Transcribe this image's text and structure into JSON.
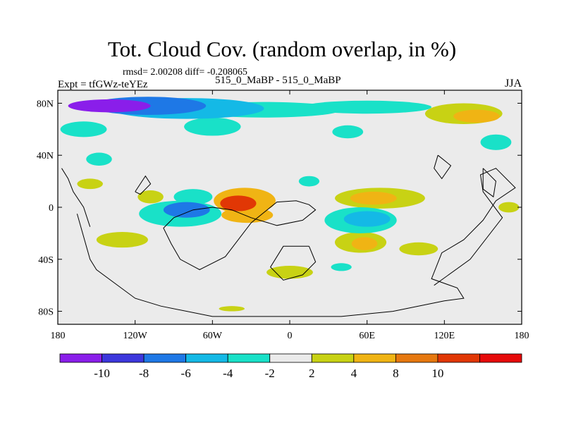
{
  "chart_data": {
    "type": "contour-map",
    "title": "Tot. Cloud Cov. (random overlap, in %)",
    "stats": "rmsd= 2.00208  diff= -0.208065",
    "left_label": "Expt = tfGWz-teYEz",
    "center_label": "515_0_MaBP - 515_0_MaBP",
    "right_label": "JJA",
    "xlim": [
      -180,
      180
    ],
    "ylim": [
      -90,
      90
    ],
    "x_ticks": [
      {
        "value": -180,
        "label": "180"
      },
      {
        "value": -120,
        "label": "120W"
      },
      {
        "value": -60,
        "label": "60W"
      },
      {
        "value": 0,
        "label": "0"
      },
      {
        "value": 60,
        "label": "60E"
      },
      {
        "value": 120,
        "label": "120E"
      },
      {
        "value": 180,
        "label": "180"
      }
    ],
    "y_ticks": [
      {
        "value": 80,
        "label": "80N"
      },
      {
        "value": 40,
        "label": "40N"
      },
      {
        "value": 0,
        "label": "0"
      },
      {
        "value": -40,
        "label": "40S"
      },
      {
        "value": -80,
        "label": "80S"
      }
    ],
    "levels": [
      -12,
      -10,
      -8,
      -6,
      -4,
      -2,
      2,
      4,
      8,
      10,
      12
    ],
    "level_labels": [
      "-10",
      "-8",
      "-6",
      "-4",
      "-2",
      "2",
      "4",
      "8",
      "10"
    ],
    "colors": [
      "#8a1eea",
      "#3c37dc",
      "#1e78e6",
      "#14b9e6",
      "#19e1c8",
      "#ebebeb",
      "#c8d214",
      "#f0b414",
      "#e6780f",
      "#e13705",
      "#e60a0a"
    ],
    "anomalies": [
      {
        "lon": -140,
        "lat": 78,
        "rlon": 32,
        "rlat": 5,
        "value": -10.5
      },
      {
        "lon": -110,
        "lat": 78,
        "rlon": 45,
        "rlat": 7,
        "value": -7
      },
      {
        "lon": -80,
        "lat": 76,
        "rlon": 60,
        "rlat": 8,
        "value": -5
      },
      {
        "lon": -20,
        "lat": 75,
        "rlon": 60,
        "rlat": 6,
        "value": -3.5
      },
      {
        "lon": 60,
        "lat": 77,
        "rlon": 50,
        "rlat": 5,
        "value": -3
      },
      {
        "lon": -160,
        "lat": 60,
        "rlon": 18,
        "rlat": 6,
        "value": -3.5
      },
      {
        "lon": -60,
        "lat": 62,
        "rlon": 22,
        "rlat": 7,
        "value": -3.5
      },
      {
        "lon": 45,
        "lat": 58,
        "rlon": 12,
        "rlat": 5,
        "value": -3
      },
      {
        "lon": 145,
        "lat": 70,
        "rlon": 18,
        "rlat": 5,
        "value": 6
      },
      {
        "lon": 135,
        "lat": 72,
        "rlon": 30,
        "rlat": 8,
        "value": 3
      },
      {
        "lon": 160,
        "lat": 50,
        "rlon": 12,
        "rlat": 6,
        "value": -3
      },
      {
        "lon": -148,
        "lat": 37,
        "rlon": 10,
        "rlat": 5,
        "value": -3
      },
      {
        "lon": -40,
        "lat": 3,
        "rlon": 14,
        "rlat": 6,
        "value": 10
      },
      {
        "lon": -35,
        "lat": 5,
        "rlon": 24,
        "rlat": 10,
        "value": 5
      },
      {
        "lon": -33,
        "lat": -6,
        "rlon": 20,
        "rlat": 6,
        "value": 5
      },
      {
        "lon": -75,
        "lat": 8,
        "rlon": 15,
        "rlat": 6,
        "value": -3.5
      },
      {
        "lon": -80,
        "lat": -2,
        "rlon": 18,
        "rlat": 6,
        "value": -7
      },
      {
        "lon": -85,
        "lat": -5,
        "rlon": 32,
        "rlat": 10,
        "value": -3.5
      },
      {
        "lon": -108,
        "lat": 8,
        "rlon": 10,
        "rlat": 5,
        "value": 3
      },
      {
        "lon": -130,
        "lat": -25,
        "rlon": 20,
        "rlat": 6,
        "value": 3
      },
      {
        "lon": 65,
        "lat": 7,
        "rlon": 18,
        "rlat": 5,
        "value": 6
      },
      {
        "lon": 70,
        "lat": 7,
        "rlon": 35,
        "rlat": 8,
        "value": 3
      },
      {
        "lon": 60,
        "lat": -9,
        "rlon": 18,
        "rlat": 6,
        "value": -6
      },
      {
        "lon": 55,
        "lat": -10,
        "rlon": 28,
        "rlat": 10,
        "value": -3.5
      },
      {
        "lon": 58,
        "lat": -28,
        "rlon": 10,
        "rlat": 5,
        "value": 6
      },
      {
        "lon": 55,
        "lat": -27,
        "rlon": 20,
        "rlat": 8,
        "value": 3
      },
      {
        "lon": 100,
        "lat": -32,
        "rlon": 15,
        "rlat": 5,
        "value": 3
      },
      {
        "lon": 0,
        "lat": -50,
        "rlon": 18,
        "rlat": 5,
        "value": 3
      },
      {
        "lon": -45,
        "lat": -78,
        "rlon": 10,
        "rlat": 2,
        "value": 3
      },
      {
        "lon": -155,
        "lat": 18,
        "rlon": 10,
        "rlat": 4,
        "value": 3
      },
      {
        "lon": 40,
        "lat": -46,
        "rlon": 8,
        "rlat": 3,
        "value": -3
      },
      {
        "lon": 170,
        "lat": 0,
        "rlon": 8,
        "rlat": 4,
        "value": 3
      },
      {
        "lon": 15,
        "lat": 20,
        "rlon": 8,
        "rlat": 4,
        "value": -3
      }
    ],
    "continent_outlines": [
      [
        [
          -60,
          0
        ],
        [
          -75,
          -2
        ],
        [
          -90,
          -8
        ],
        [
          -98,
          -16
        ],
        [
          -92,
          -28
        ],
        [
          -85,
          -40
        ],
        [
          -70,
          -48
        ],
        [
          -50,
          -38
        ],
        [
          -30,
          -12
        ],
        [
          -20,
          -4
        ],
        [
          -10,
          4
        ],
        [
          5,
          5
        ],
        [
          15,
          2
        ],
        [
          20,
          -2
        ],
        [
          10,
          -10
        ],
        [
          -10,
          -14
        ],
        [
          -30,
          -8
        ],
        [
          -45,
          -2
        ],
        [
          -60,
          0
        ]
      ],
      [
        [
          15,
          -30
        ],
        [
          -5,
          -30
        ],
        [
          -15,
          -46
        ],
        [
          -5,
          -56
        ],
        [
          10,
          -52
        ],
        [
          20,
          -42
        ],
        [
          15,
          -30
        ]
      ],
      [
        [
          -120,
          12
        ],
        [
          -112,
          24
        ],
        [
          -108,
          18
        ],
        [
          -116,
          10
        ],
        [
          -120,
          12
        ]
      ],
      [
        [
          -165,
          -5
        ],
        [
          -155,
          -40
        ],
        [
          -150,
          -48
        ],
        [
          -120,
          -70
        ],
        [
          -100,
          -76
        ],
        [
          -60,
          -84
        ],
        [
          -10,
          -84
        ],
        [
          40,
          -84
        ],
        [
          80,
          -80
        ],
        [
          120,
          -72
        ],
        [
          135,
          -70
        ],
        [
          130,
          -62
        ],
        [
          110,
          -55
        ],
        [
          118,
          -35
        ],
        [
          135,
          -25
        ],
        [
          150,
          -10
        ],
        [
          160,
          5
        ],
        [
          175,
          15
        ],
        [
          160,
          30
        ],
        [
          148,
          25
        ],
        [
          150,
          12
        ],
        [
          165,
          -8
        ],
        [
          140,
          -40
        ],
        [
          112,
          -60
        ]
      ],
      [
        [
          115,
          40
        ],
        [
          125,
          32
        ],
        [
          118,
          22
        ],
        [
          112,
          30
        ],
        [
          115,
          40
        ]
      ],
      [
        [
          150,
          30
        ],
        [
          160,
          20
        ],
        [
          158,
          8
        ],
        [
          150,
          14
        ],
        [
          150,
          30
        ]
      ],
      [
        [
          -177,
          30
        ],
        [
          -172,
          22
        ],
        [
          -168,
          12
        ],
        [
          -160,
          0
        ],
        [
          -155,
          -15
        ]
      ]
    ]
  }
}
